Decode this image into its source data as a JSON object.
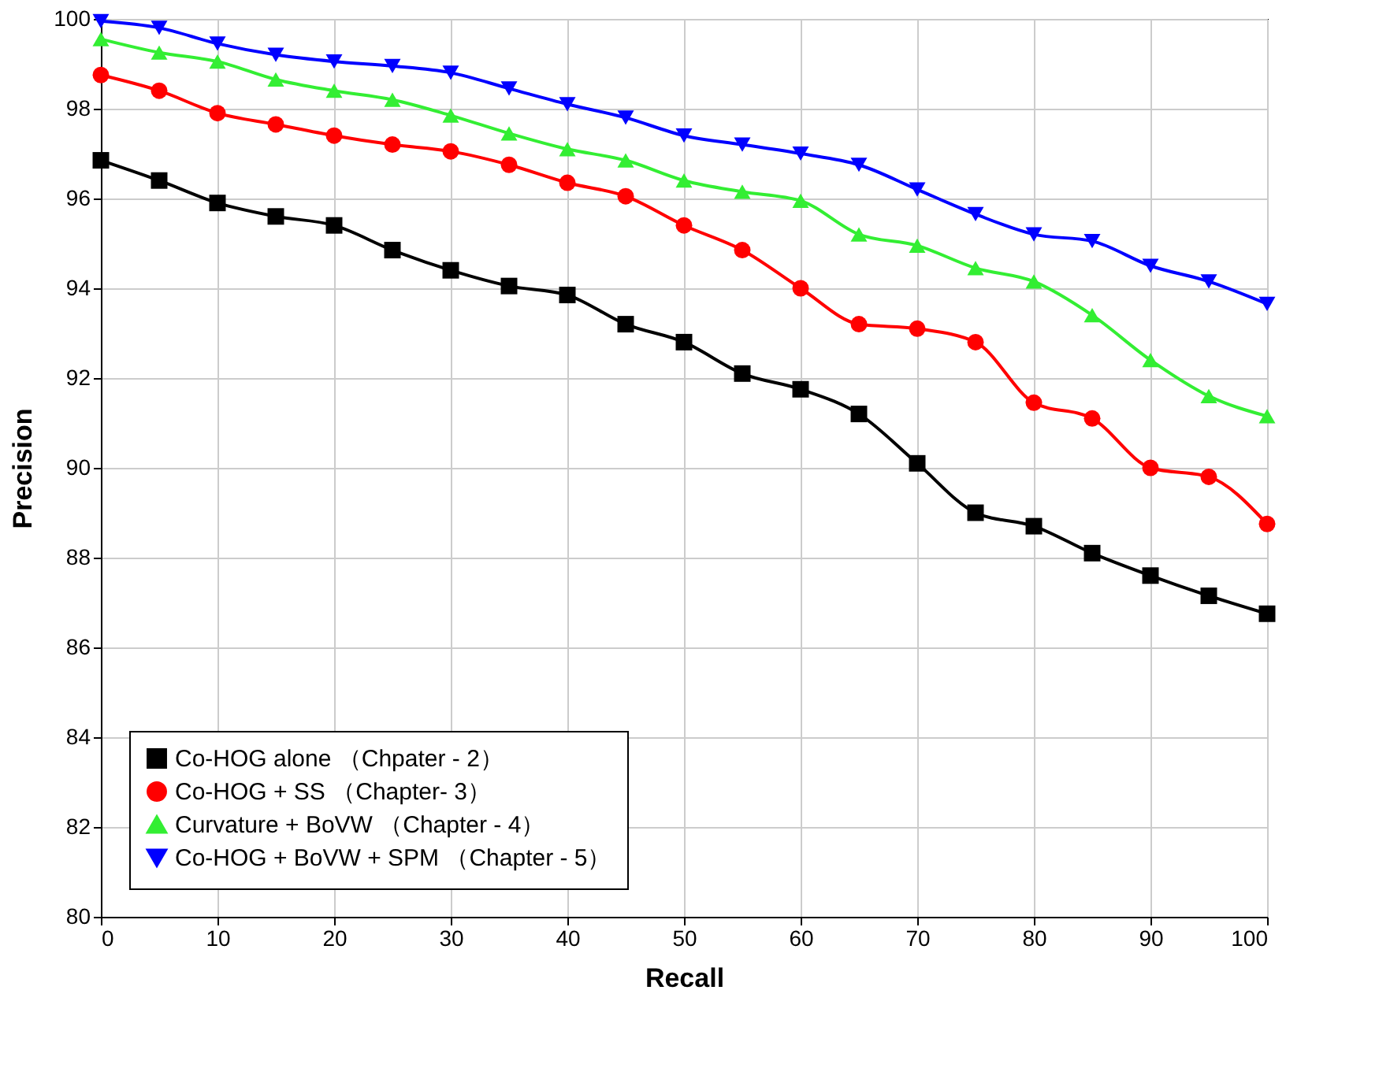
{
  "chart_data": {
    "type": "line",
    "xlabel": "Recall",
    "ylabel": "Precision",
    "x": [
      0,
      5,
      10,
      15,
      20,
      25,
      30,
      35,
      40,
      45,
      50,
      55,
      60,
      65,
      70,
      75,
      80,
      85,
      90,
      95,
      100
    ],
    "xlim": [
      0,
      100
    ],
    "xticks": [
      0,
      10,
      20,
      30,
      40,
      50,
      60,
      70,
      80,
      90,
      100
    ],
    "ylim": [
      80,
      100
    ],
    "yticks": [
      80,
      82,
      84,
      86,
      88,
      90,
      92,
      94,
      96,
      98,
      100
    ],
    "grid": true,
    "legend": "bottom left",
    "line_style": "solid",
    "series": [
      {
        "name": "Co-HOG alone （Chpater - 2）",
        "color": "#000000",
        "marker": "square",
        "values": [
          96.85,
          96.4,
          95.9,
          95.6,
          95.4,
          94.85,
          94.4,
          94.05,
          93.85,
          93.2,
          92.8,
          92.1,
          91.75,
          91.2,
          90.1,
          89.0,
          88.7,
          88.1,
          87.6,
          87.15,
          86.75
        ]
      },
      {
        "name": "Co-HOG + SS （Chapter- 3）",
        "color": "#ff0000",
        "marker": "circle",
        "values": [
          98.75,
          98.4,
          97.9,
          97.65,
          97.4,
          97.2,
          97.05,
          96.75,
          96.35,
          96.05,
          95.4,
          94.85,
          94.0,
          93.2,
          93.1,
          92.8,
          91.45,
          91.1,
          90.0,
          89.8,
          88.75
        ]
      },
      {
        "name": "Curvature + BoVW （Chapter - 4）",
        "color": "#33ee33",
        "marker": "triangle",
        "values": [
          99.55,
          99.25,
          99.05,
          98.65,
          98.4,
          98.2,
          97.85,
          97.45,
          97.1,
          96.85,
          96.4,
          96.15,
          95.95,
          95.2,
          94.95,
          94.45,
          94.15,
          93.4,
          92.4,
          91.6,
          91.15
        ]
      },
      {
        "name": "Co-HOG + BoVW + SPM （Chapter - 5）",
        "color": "#0000ff",
        "marker": "triangle-down",
        "values": [
          99.95,
          99.8,
          99.45,
          99.2,
          99.05,
          98.95,
          98.8,
          98.45,
          98.1,
          97.8,
          97.4,
          97.2,
          97.0,
          96.75,
          96.2,
          95.65,
          95.2,
          95.05,
          94.5,
          94.15,
          93.65
        ]
      }
    ]
  }
}
